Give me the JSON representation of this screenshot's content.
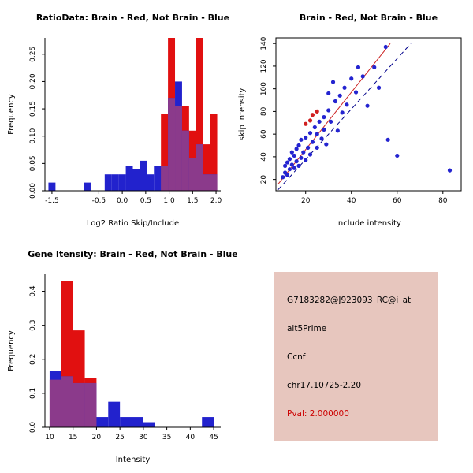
{
  "page": {
    "background": "#ffffff"
  },
  "info_panel": {
    "bg": "#e7c6be",
    "lines": [
      {
        "text": "G7183282@J923093_RC@i_at",
        "color": "#000000"
      },
      {
        "text": "alt5Prime",
        "color": "#000000"
      },
      {
        "text": "Ccnf",
        "color": "#000000"
      },
      {
        "text": "chr17.10725-2.20",
        "color": "#000000"
      },
      {
        "text": "Pval: 2.000000",
        "color": "#cc0000"
      }
    ]
  },
  "chart_data": [
    {
      "id": "ratio-hist",
      "type": "bar",
      "title": "RatioData: Brain - Red, Not Brain - Blue",
      "xlabel": "Log2 Ratio Skip/Include",
      "ylabel": "Frequency",
      "xlim": [
        -1.65,
        2.1
      ],
      "ylim": [
        0,
        0.28
      ],
      "xtick_vals": [
        -1.5,
        -0.5,
        0,
        0.5,
        1,
        1.5,
        2
      ],
      "xtick_labels": [
        "-1.5",
        "-0.5",
        "0.0",
        "0.5",
        "1.0",
        "1.5",
        "2.0"
      ],
      "ytick_vals": [
        0,
        0.05,
        0.1,
        0.15,
        0.2,
        0.25
      ],
      "ytick_labels": [
        "0.00",
        "0.05",
        "0.10",
        "0.15",
        "0.20",
        "0.25"
      ],
      "bin_width": 0.15,
      "overlap_color": "#8b3a8b",
      "legend_note": "Brain - Red, Not Brain - Blue",
      "series": [
        {
          "name": "Brain",
          "color": "#e11010",
          "bars": [
            [
              0.825,
              0.14
            ],
            [
              0.975,
              0.28
            ],
            [
              1.125,
              0.155
            ],
            [
              1.275,
              0.155
            ],
            [
              1.425,
              0.11
            ],
            [
              1.575,
              0.28
            ],
            [
              1.725,
              0.085
            ],
            [
              1.875,
              0.14
            ]
          ]
        },
        {
          "name": "Not Brain",
          "color": "#2222cd",
          "bars": [
            [
              -1.575,
              0.015
            ],
            [
              -0.825,
              0.015
            ],
            [
              -0.375,
              0.03
            ],
            [
              -0.225,
              0.03
            ],
            [
              -0.075,
              0.03
            ],
            [
              0.075,
              0.045
            ],
            [
              0.225,
              0.04
            ],
            [
              0.375,
              0.055
            ],
            [
              0.525,
              0.03
            ],
            [
              0.675,
              0.045
            ],
            [
              0.825,
              0.045
            ],
            [
              0.975,
              0.17
            ],
            [
              1.125,
              0.2
            ],
            [
              1.275,
              0.11
            ],
            [
              1.425,
              0.06
            ],
            [
              1.575,
              0.085
            ],
            [
              1.725,
              0.03
            ],
            [
              1.875,
              0.03
            ]
          ]
        }
      ]
    },
    {
      "id": "scatter",
      "type": "scatter",
      "title": "Brain - Red, Not Brain - Blue",
      "xlabel": "include intensity",
      "ylabel": "skip intensity",
      "xlim": [
        7,
        88
      ],
      "ylim": [
        10,
        145
      ],
      "xtick_vals": [
        20,
        40,
        60,
        80
      ],
      "xtick_labels": [
        "20",
        "40",
        "60",
        "80"
      ],
      "ytick_vals": [
        20,
        40,
        60,
        80,
        100,
        120,
        140
      ],
      "ytick_labels": [
        "20",
        "40",
        "60",
        "80",
        "100",
        "120",
        "140"
      ],
      "series": [
        {
          "name": "Not Brain",
          "color": "#2424d0",
          "points": [
            [
              10,
              22
            ],
            [
              11,
              26
            ],
            [
              11,
              32
            ],
            [
              12,
              24
            ],
            [
              12,
              35
            ],
            [
              13,
              29
            ],
            [
              13,
              38
            ],
            [
              14,
              33
            ],
            [
              14,
              44
            ],
            [
              15,
              30
            ],
            [
              15,
              41
            ],
            [
              16,
              36
            ],
            [
              16,
              47
            ],
            [
              17,
              32
            ],
            [
              17,
              50
            ],
            [
              18,
              39
            ],
            [
              18,
              55
            ],
            [
              19,
              44
            ],
            [
              20,
              37
            ],
            [
              20,
              57
            ],
            [
              21,
              48
            ],
            [
              22,
              42
            ],
            [
              22,
              61
            ],
            [
              23,
              53
            ],
            [
              24,
              66
            ],
            [
              25,
              48
            ],
            [
              25,
              60
            ],
            [
              26,
              71
            ],
            [
              27,
              56
            ],
            [
              28,
              75
            ],
            [
              28,
              64
            ],
            [
              29,
              51
            ],
            [
              30,
              81
            ],
            [
              30,
              96
            ],
            [
              31,
              71
            ],
            [
              32,
              106
            ],
            [
              33,
              89
            ],
            [
              34,
              63
            ],
            [
              35,
              94
            ],
            [
              36,
              79
            ],
            [
              37,
              101
            ],
            [
              38,
              86
            ],
            [
              40,
              109
            ],
            [
              42,
              97
            ],
            [
              43,
              119
            ],
            [
              45,
              111
            ],
            [
              47,
              85
            ],
            [
              50,
              119
            ],
            [
              52,
              101
            ],
            [
              55,
              137
            ],
            [
              56,
              55
            ],
            [
              60,
              41
            ],
            [
              83,
              28
            ]
          ]
        },
        {
          "name": "Brain",
          "color": "#d02020",
          "points": [
            [
              20,
              69
            ],
            [
              22,
              72
            ],
            [
              23,
              77
            ],
            [
              25,
              80
            ]
          ]
        }
      ],
      "lines": [
        {
          "name": "brain-fit",
          "color": "#cc2222",
          "dash": "",
          "x1": 8,
          "y1": 16,
          "x2": 57,
          "y2": 140
        },
        {
          "name": "notbrain-fit",
          "color": "#00008b",
          "dash": "6,4",
          "x1": 8,
          "y1": 11,
          "x2": 66,
          "y2": 140
        }
      ]
    },
    {
      "id": "gene-hist",
      "type": "bar",
      "title": "Gene Itensity: Brain - Red, Not Brain - Blue",
      "xlabel": "Intensity",
      "ylabel": "Frequency",
      "xlim": [
        9,
        46.5
      ],
      "ylim": [
        0,
        0.45
      ],
      "xtick_vals": [
        10,
        15,
        20,
        25,
        30,
        35,
        40,
        45
      ],
      "xtick_labels": [
        "10",
        "15",
        "20",
        "25",
        "30",
        "35",
        "40",
        "45"
      ],
      "ytick_vals": [
        0,
        0.1,
        0.2,
        0.3,
        0.4
      ],
      "ytick_labels": [
        "0.0",
        "0.1",
        "0.2",
        "0.3",
        "0.4"
      ],
      "bin_width": 2.5,
      "overlap_color": "#8b3a8b",
      "legend_note": "Brain - Red, Not Brain - Blue",
      "series": [
        {
          "name": "Brain",
          "color": "#e11010",
          "bars": [
            [
              10,
              0.14
            ],
            [
              12.5,
              0.43
            ],
            [
              15,
              0.285
            ],
            [
              17.5,
              0.145
            ]
          ]
        },
        {
          "name": "Not Brain",
          "color": "#2222cd",
          "bars": [
            [
              10,
              0.165
            ],
            [
              12.5,
              0.15
            ],
            [
              15,
              0.13
            ],
            [
              17.5,
              0.13
            ],
            [
              20,
              0.03
            ],
            [
              22.5,
              0.075
            ],
            [
              25,
              0.03
            ],
            [
              27.5,
              0.03
            ],
            [
              30,
              0.015
            ],
            [
              42.5,
              0.03
            ]
          ]
        }
      ]
    }
  ]
}
